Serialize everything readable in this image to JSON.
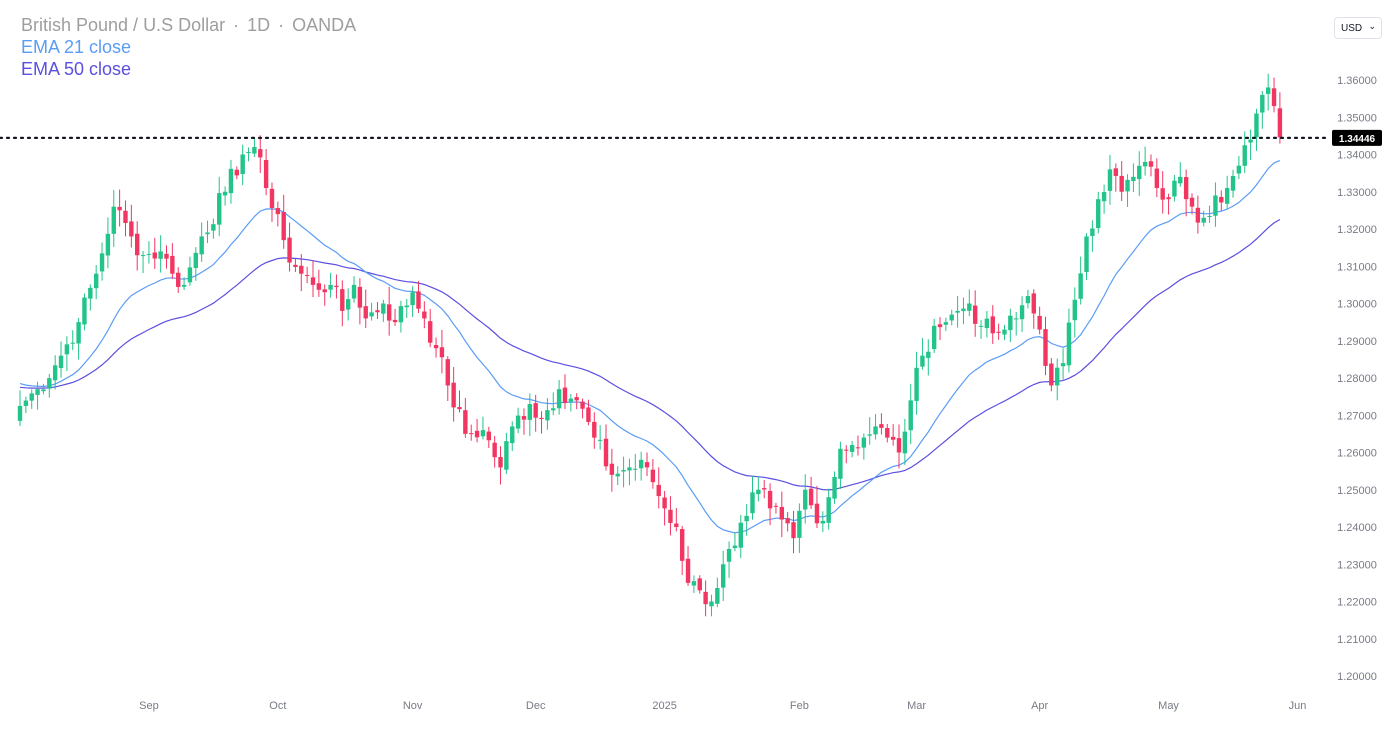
{
  "header": {
    "symbol": "British Pound / U.S Dollar",
    "separator": "·",
    "interval": "1D",
    "source": "OANDA"
  },
  "indicators": [
    {
      "label": "EMA 21 close",
      "color": "#5b9cf6"
    },
    {
      "label": "EMA 50 close",
      "color": "#5b4fe0"
    }
  ],
  "currency_selector": {
    "value": "USD",
    "icon": "chevron-down-icon"
  },
  "colors": {
    "up": "#22c48a",
    "down": "#f23662",
    "ema21": "#5b9cf6",
    "ema50": "#5b4fe0",
    "last_price_line": "#131722",
    "last_price_bg": "#000000"
  },
  "chart_data": {
    "type": "candlestick",
    "title": "British Pound / U.S Dollar · 1D · OANDA",
    "last_price": 1.34446,
    "last_price_label": "1.34446",
    "ylim": [
      1.195,
      1.365
    ],
    "y_ticks": [
      "1.20000",
      "1.21000",
      "1.22000",
      "1.23000",
      "1.24000",
      "1.25000",
      "1.26000",
      "1.27000",
      "1.28000",
      "1.29000",
      "1.30000",
      "1.31000",
      "1.32000",
      "1.33000",
      "1.34000",
      "1.35000",
      "1.36000"
    ],
    "x_labels": [
      {
        "label": "Sep",
        "index": 22
      },
      {
        "label": "Oct",
        "index": 44
      },
      {
        "label": "Nov",
        "index": 67
      },
      {
        "label": "Dec",
        "index": 88
      },
      {
        "label": "2025",
        "index": 110
      },
      {
        "label": "Feb",
        "index": 133
      },
      {
        "label": "Mar",
        "index": 153
      },
      {
        "label": "Apr",
        "index": 174
      },
      {
        "label": "May",
        "index": 196
      },
      {
        "label": "Jun",
        "index": 218
      }
    ],
    "grid": false,
    "legend_position": "top-left",
    "series": [
      {
        "name": "EMA 21 close",
        "type": "line"
      },
      {
        "name": "EMA 50 close",
        "type": "line"
      }
    ],
    "anchor_closes": [
      [
        0,
        1.2725
      ],
      [
        3,
        1.277
      ],
      [
        7,
        1.286
      ],
      [
        10,
        1.295
      ],
      [
        13,
        1.308
      ],
      [
        16,
        1.326
      ],
      [
        19,
        1.318
      ],
      [
        21,
        1.313
      ],
      [
        24,
        1.314
      ],
      [
        26,
        1.308
      ],
      [
        28,
        1.305
      ],
      [
        31,
        1.318
      ],
      [
        35,
        1.33
      ],
      [
        38,
        1.34
      ],
      [
        40,
        1.342
      ],
      [
        42,
        1.331
      ],
      [
        44,
        1.324
      ],
      [
        46,
        1.311
      ],
      [
        48,
        1.308
      ],
      [
        50,
        1.305
      ],
      [
        53,
        1.305
      ],
      [
        55,
        1.298
      ],
      [
        57,
        1.305
      ],
      [
        59,
        1.296
      ],
      [
        62,
        1.3
      ],
      [
        64,
        1.295
      ],
      [
        67,
        1.303
      ],
      [
        69,
        1.296
      ],
      [
        71,
        1.288
      ],
      [
        73,
        1.278
      ],
      [
        76,
        1.265
      ],
      [
        79,
        1.266
      ],
      [
        82,
        1.256
      ],
      [
        84,
        1.267
      ],
      [
        87,
        1.273
      ],
      [
        89,
        1.269
      ],
      [
        92,
        1.277
      ],
      [
        95,
        1.274
      ],
      [
        98,
        1.264
      ],
      [
        101,
        1.254
      ],
      [
        104,
        1.256
      ],
      [
        107,
        1.256
      ],
      [
        110,
        1.245
      ],
      [
        112,
        1.24
      ],
      [
        114,
        1.225
      ],
      [
        116,
        1.223
      ],
      [
        118,
        1.22
      ],
      [
        120,
        1.23
      ],
      [
        122,
        1.235
      ],
      [
        124,
        1.243
      ],
      [
        126,
        1.25
      ],
      [
        128,
        1.245
      ],
      [
        130,
        1.242
      ],
      [
        132,
        1.237
      ],
      [
        134,
        1.25
      ],
      [
        136,
        1.241
      ],
      [
        138,
        1.248
      ],
      [
        140,
        1.261
      ],
      [
        142,
        1.262
      ],
      [
        144,
        1.264
      ],
      [
        146,
        1.267
      ],
      [
        148,
        1.264
      ],
      [
        150,
        1.26
      ],
      [
        152,
        1.274
      ],
      [
        154,
        1.286
      ],
      [
        156,
        1.294
      ],
      [
        158,
        1.295
      ],
      [
        160,
        1.298
      ],
      [
        162,
        1.3
      ],
      [
        164,
        1.294
      ],
      [
        166,
        1.292
      ],
      [
        168,
        1.293
      ],
      [
        170,
        1.296
      ],
      [
        172,
        1.302
      ],
      [
        174,
        1.293
      ],
      [
        176,
        1.278
      ],
      [
        178,
        1.284
      ],
      [
        180,
        1.301
      ],
      [
        182,
        1.318
      ],
      [
        184,
        1.328
      ],
      [
        186,
        1.336
      ],
      [
        188,
        1.33
      ],
      [
        190,
        1.334
      ],
      [
        192,
        1.338
      ],
      [
        194,
        1.331
      ],
      [
        196,
        1.328
      ],
      [
        198,
        1.334
      ],
      [
        200,
        1.326
      ],
      [
        202,
        1.323
      ],
      [
        204,
        1.329
      ],
      [
        206,
        1.331
      ],
      [
        208,
        1.337
      ],
      [
        210,
        1.344
      ],
      [
        211,
        1.351
      ],
      [
        212,
        1.356
      ],
      [
        213,
        1.358
      ],
      [
        214,
        1.353
      ],
      [
        215,
        1.3446
      ]
    ]
  }
}
